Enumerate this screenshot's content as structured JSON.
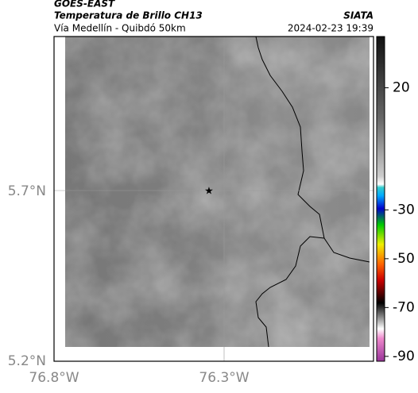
{
  "header": {
    "satellite": "GOES-EAST",
    "product": "Temperatura de Brillo CH13",
    "region": "Vía Medellín - Quibdó 50km",
    "source": "SIATA",
    "timestamp": "2024-02-23 19:39"
  },
  "axes": {
    "lat": [
      "5.7°N",
      "5.2°N"
    ],
    "lon": [
      "76.8°W",
      "76.3°W"
    ]
  },
  "colorbar": {
    "lim": [
      -92,
      41
    ],
    "ticks": [
      20,
      -30,
      -50,
      -70,
      -90
    ]
  }
}
